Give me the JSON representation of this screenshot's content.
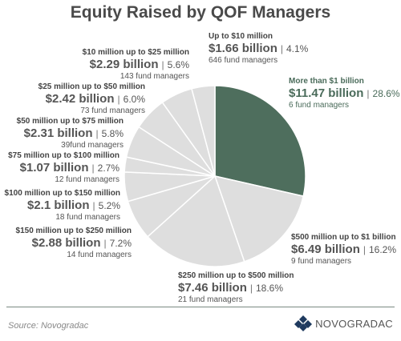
{
  "chart_data": {
    "type": "pie",
    "title": "Equity Raised by QOF Managers",
    "unit": "billion",
    "slices": [
      {
        "category": "More than $1 billion",
        "value_label": "$11.47 billion",
        "value": 11.47,
        "percent_label": "28.6%",
        "percent": 28.6,
        "managers_label": "6 fund managers",
        "color": "#4e6e5d"
      },
      {
        "category": "$500 million up to $1 billion",
        "value_label": "$6.49 billion",
        "value": 6.49,
        "percent_label": "16.2%",
        "percent": 16.2,
        "managers_label": "9 fund managers",
        "color": "#dedede"
      },
      {
        "category": "$250 million up to $500 million",
        "value_label": "$7.46 billion",
        "value": 7.46,
        "percent_label": "18.6%",
        "percent": 18.6,
        "managers_label": "21 fund managers",
        "color": "#dedede"
      },
      {
        "category": "$150 million up to $250 million",
        "value_label": "$2.88 billion",
        "value": 2.88,
        "percent_label": "7.2%",
        "percent": 7.2,
        "managers_label": "14 fund managers",
        "color": "#dedede"
      },
      {
        "category": "$100 million up to $150 million",
        "value_label": "$2.1 billion",
        "value": 2.1,
        "percent_label": "5.2%",
        "percent": 5.2,
        "managers_label": "18 fund managers",
        "color": "#dedede"
      },
      {
        "category": "$75 million up to $100 million",
        "value_label": "$1.07 billion",
        "value": 1.07,
        "percent_label": "2.7%",
        "percent": 2.7,
        "managers_label": "12 fund managers",
        "color": "#dedede"
      },
      {
        "category": "$50 million up to $75 million",
        "value_label": "$2.31 billion",
        "value": 2.31,
        "percent_label": "5.8%",
        "percent": 5.8,
        "managers_label": "39fund managers",
        "color": "#dedede"
      },
      {
        "category": "$25 million up to $50 million",
        "value_label": "$2.42 billion",
        "value": 2.42,
        "percent_label": "6.0%",
        "percent": 6.0,
        "managers_label": "73 fund managers",
        "color": "#dedede"
      },
      {
        "category": "$10 million up to $25 million",
        "value_label": "$2.29 billion",
        "value": 2.29,
        "percent_label": "5.6%",
        "percent": 5.6,
        "managers_label": "143 fund managers",
        "color": "#dedede"
      },
      {
        "category": "Up to $10 million",
        "value_label": "$1.66 billion",
        "value": 1.66,
        "percent_label": "4.1%",
        "percent": 4.1,
        "managers_label": "646 fund managers",
        "color": "#dedede"
      }
    ]
  },
  "separator": "|",
  "source": "Source: Novogradac",
  "logo_text": "NOVOGRADAC",
  "colors": {
    "highlight": "#4e6e5d",
    "other": "#dedede",
    "border": "#ffffff"
  }
}
